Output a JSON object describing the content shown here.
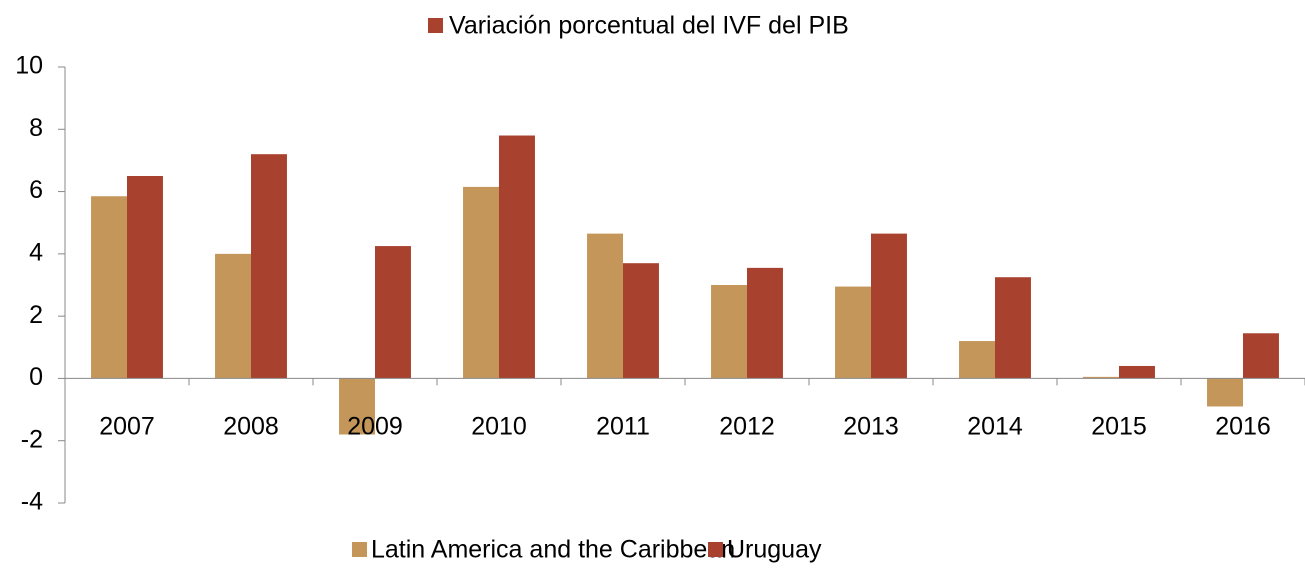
{
  "chart_data": {
    "type": "bar",
    "title": "Variación porcentual del IVF del PIB",
    "categories": [
      "2007",
      "2008",
      "2009",
      "2010",
      "2011",
      "2012",
      "2013",
      "2014",
      "2015",
      "2016"
    ],
    "series": [
      {
        "name": "Latin America and the Caribbean",
        "color": "#c4965a",
        "values": [
          5.85,
          4.0,
          -1.8,
          6.15,
          4.65,
          3.0,
          2.95,
          1.2,
          0.05,
          -0.9
        ]
      },
      {
        "name": "Uruguay",
        "color": "#a8412e",
        "values": [
          6.5,
          7.2,
          4.25,
          7.8,
          3.7,
          3.55,
          4.65,
          3.25,
          0.4,
          1.45
        ]
      }
    ],
    "ylim": [
      -4,
      10
    ],
    "yticks": [
      -4,
      -2,
      0,
      2,
      4,
      6,
      8,
      10
    ],
    "legend": "bottom"
  }
}
